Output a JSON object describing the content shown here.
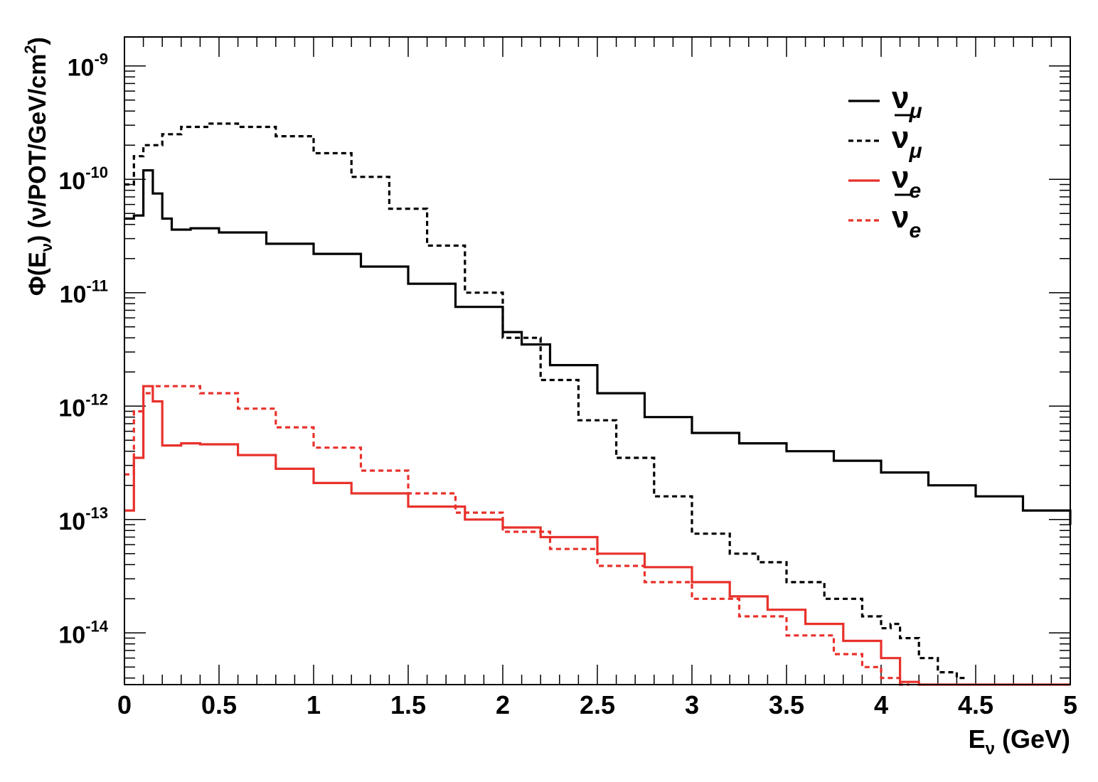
{
  "chart_data": {
    "type": "line",
    "xlabel": {
      "main": "E",
      "sub": "ν",
      "rest": " (GeV)"
    },
    "ylabel": {
      "prefix": "Φ(E",
      "sub": "ν",
      "mid": ") (ν/POT/GeV/cm",
      "sup": "2",
      "suffix": ")"
    },
    "xlim": [
      0,
      5
    ],
    "ylim": [
      3.5e-15,
      1.8e-09
    ],
    "ylog": true,
    "x_ticks": [
      {
        "value": 0,
        "label": "0"
      },
      {
        "value": 0.5,
        "label": "0.5"
      },
      {
        "value": 1,
        "label": "1"
      },
      {
        "value": 1.5,
        "label": "1.5"
      },
      {
        "value": 2,
        "label": "2"
      },
      {
        "value": 2.5,
        "label": "2.5"
      },
      {
        "value": 3,
        "label": "3"
      },
      {
        "value": 3.5,
        "label": "3.5"
      },
      {
        "value": 4,
        "label": "4"
      },
      {
        "value": 4.5,
        "label": "4.5"
      },
      {
        "value": 5,
        "label": "5"
      }
    ],
    "y_ticks": [
      {
        "value": 1e-14,
        "base": "10",
        "exp": "-14"
      },
      {
        "value": 1e-13,
        "base": "10",
        "exp": "-13"
      },
      {
        "value": 1e-12,
        "base": "10",
        "exp": "-12"
      },
      {
        "value": 1e-11,
        "base": "10",
        "exp": "-11"
      },
      {
        "value": 1e-10,
        "base": "10",
        "exp": "-10"
      },
      {
        "value": 1e-09,
        "base": "10",
        "exp": "-9"
      }
    ],
    "legend_position": "top-right",
    "series": [
      {
        "name": "ν_μ",
        "legend_symbol": "ν",
        "legend_sub": "μ",
        "legend_bar": false,
        "color": "#000000",
        "style": "solid",
        "x": [
          0,
          0.05,
          0.1,
          0.15,
          0.2,
          0.25,
          0.35,
          0.5,
          0.75,
          1,
          1.25,
          1.5,
          1.75,
          2,
          2.1,
          2.25,
          2.5,
          2.75,
          3,
          3.25,
          3.5,
          3.75,
          4,
          4.25,
          4.5,
          4.75,
          5
        ],
        "y": [
          4.5e-11,
          4.8e-11,
          1.2e-10,
          7.5e-11,
          4.5e-11,
          3.6e-11,
          3.7e-11,
          3.4e-11,
          2.7e-11,
          2.2e-11,
          1.7e-11,
          1.2e-11,
          7.5e-12,
          4.5e-12,
          3.5e-12,
          2.3e-12,
          1.3e-12,
          8e-13,
          5.8e-13,
          4.7e-13,
          4e-13,
          3.3e-13,
          2.6e-13,
          2e-13,
          1.6e-13,
          1.2e-13,
          9e-14
        ]
      },
      {
        "name": "ν̄_μ",
        "legend_symbol": "ν",
        "legend_sub": "μ",
        "legend_bar": true,
        "color": "#000000",
        "style": "dashed",
        "x": [
          0,
          0.05,
          0.1,
          0.2,
          0.3,
          0.45,
          0.6,
          0.8,
          1,
          1.2,
          1.4,
          1.6,
          1.8,
          2,
          2.2,
          2.4,
          2.6,
          2.8,
          3,
          3.2,
          3.35,
          3.5,
          3.7,
          3.9,
          4,
          4.05,
          4.1,
          4.2,
          4.3,
          4.4
        ],
        "y": [
          9e-11,
          1.6e-10,
          2e-10,
          2.5e-10,
          2.9e-10,
          3.1e-10,
          2.9e-10,
          2.4e-10,
          1.7e-10,
          1.05e-10,
          5.5e-11,
          2.6e-11,
          1e-11,
          4e-12,
          1.7e-12,
          7.5e-13,
          3.5e-13,
          1.6e-13,
          7.5e-14,
          5e-14,
          4.2e-14,
          2.8e-14,
          2e-14,
          1.4e-14,
          1.1e-14,
          1.2e-14,
          9e-15,
          6e-15,
          4.5e-15,
          4e-15
        ]
      },
      {
        "name": "ν_e",
        "legend_symbol": "ν",
        "legend_sub": "e",
        "legend_bar": false,
        "color": "#e8312b",
        "style": "solid",
        "x": [
          0,
          0.05,
          0.1,
          0.15,
          0.2,
          0.3,
          0.4,
          0.6,
          0.8,
          1,
          1.2,
          1.5,
          1.8,
          2,
          2.2,
          2.5,
          2.75,
          3,
          3.2,
          3.4,
          3.6,
          3.8,
          4,
          4.1,
          4.2,
          4.5,
          5
        ],
        "y": [
          1.2e-13,
          3.5e-13,
          1.5e-12,
          1.1e-12,
          4.5e-13,
          4.7e-13,
          4.6e-13,
          3.7e-13,
          2.8e-13,
          2.1e-13,
          1.7e-13,
          1.3e-13,
          1e-13,
          8.5e-14,
          7e-14,
          5e-14,
          3.8e-14,
          2.8e-14,
          2.1e-14,
          1.6e-14,
          1.2e-14,
          8.5e-15,
          6e-15,
          3.7e-15,
          3.5e-15,
          3.5e-15,
          3.5e-15
        ]
      },
      {
        "name": "ν̄_e",
        "legend_symbol": "ν",
        "legend_sub": "e",
        "legend_bar": true,
        "color": "#e8312b",
        "style": "dashed",
        "x": [
          0,
          0.05,
          0.1,
          0.15,
          0.25,
          0.4,
          0.6,
          0.8,
          1,
          1.25,
          1.5,
          1.75,
          2,
          2.25,
          2.5,
          2.75,
          3,
          3.25,
          3.5,
          3.75,
          3.9,
          4,
          4.1
        ],
        "y": [
          2.5e-13,
          9e-13,
          1.3e-12,
          1.5e-12,
          1.5e-12,
          1.3e-12,
          9.5e-13,
          6.5e-13,
          4.3e-13,
          2.7e-13,
          1.7e-13,
          1.15e-13,
          7.8e-14,
          5.5e-14,
          3.9e-14,
          2.8e-14,
          2e-14,
          1.4e-14,
          9.5e-15,
          6.5e-15,
          5e-15,
          4e-15,
          3.5e-15
        ]
      }
    ]
  }
}
